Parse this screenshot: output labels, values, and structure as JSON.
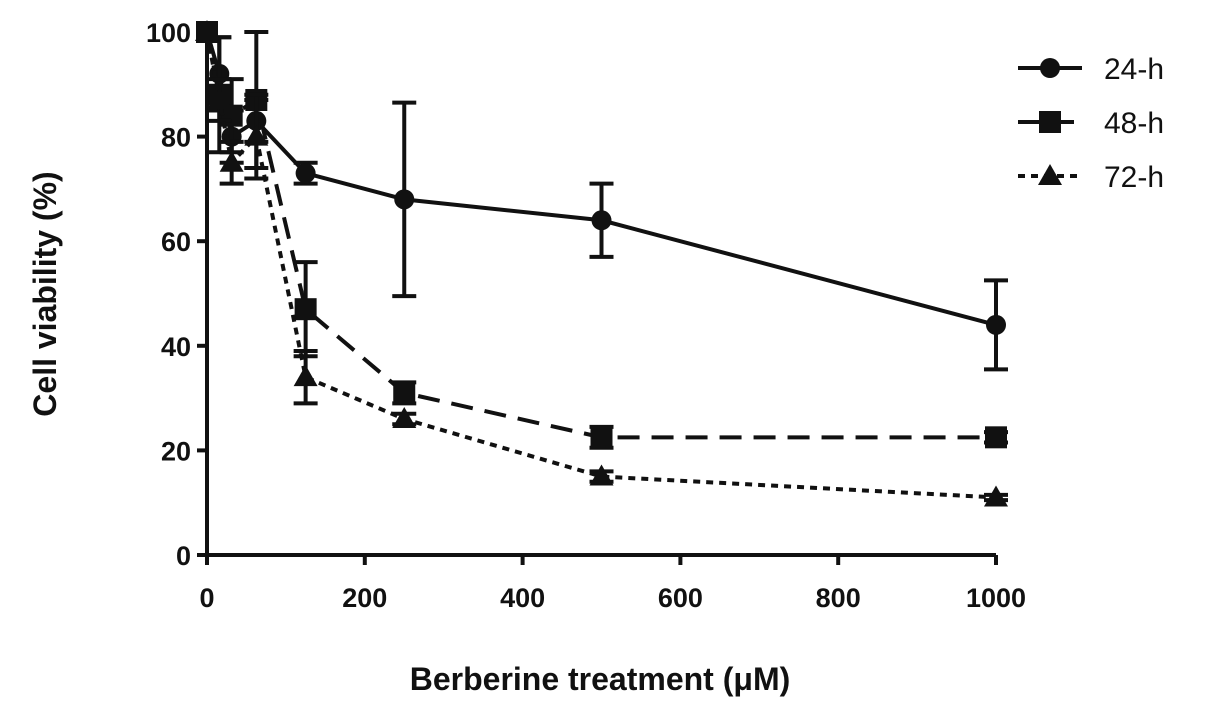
{
  "chart_data": {
    "type": "line",
    "title": "",
    "xlabel": "Berberine treatment (μM)",
    "ylabel": "Cell viability (%)",
    "xlim": [
      0,
      1000
    ],
    "ylim": [
      0,
      100
    ],
    "xticks": [
      0,
      200,
      400,
      600,
      800,
      1000
    ],
    "yticks": [
      0,
      20,
      40,
      60,
      80,
      100
    ],
    "grid": false,
    "legend_position": "top-right",
    "series": [
      {
        "name": "24-h",
        "marker": "circle",
        "line_style": "solid",
        "color": "#111111",
        "x": [
          0,
          15.6,
          31.25,
          62.5,
          125,
          250,
          500,
          1000
        ],
        "y": [
          100,
          92,
          80,
          83,
          73,
          68,
          64,
          44
        ],
        "error": [
          0,
          7,
          5,
          4,
          2,
          18.5,
          7,
          8.5
        ]
      },
      {
        "name": "48-h",
        "marker": "square",
        "line_style": "dashed",
        "color": "#111111",
        "x": [
          0,
          15.6,
          31.25,
          62.5,
          125,
          250,
          500,
          1000
        ],
        "y": [
          100,
          88,
          84,
          87,
          47,
          31,
          22.5,
          22.5
        ],
        "error": [
          0,
          11,
          7,
          13,
          9,
          2,
          2,
          1
        ]
      },
      {
        "name": "72-h",
        "marker": "triangle",
        "line_style": "dotted",
        "color": "#111111",
        "x": [
          0,
          15.6,
          31.25,
          62.5,
          125,
          250,
          500,
          1000
        ],
        "y": [
          100,
          87,
          75,
          80,
          34,
          26,
          15,
          11
        ],
        "error": [
          0,
          4,
          4,
          8,
          5,
          1,
          1,
          0.5
        ]
      }
    ]
  }
}
